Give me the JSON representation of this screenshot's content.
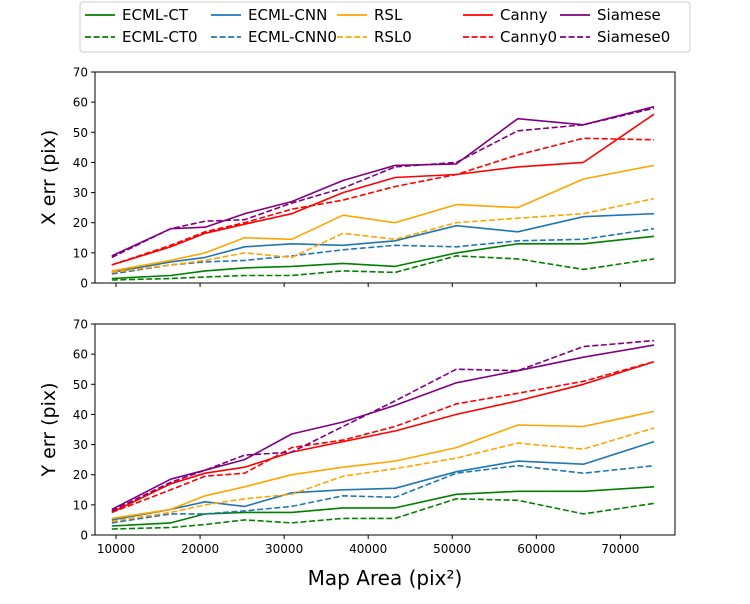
{
  "chart_data": [
    {
      "type": "line",
      "title": "",
      "xlabel": "",
      "ylabel": "X err (pix)",
      "xlim": [
        7500,
        76500
      ],
      "ylim": [
        0,
        70
      ],
      "xticks": [
        10000,
        20000,
        30000,
        40000,
        50000,
        60000,
        70000
      ],
      "xtick_labels": [
        "",
        "",
        "",
        "",
        "",
        "",
        ""
      ],
      "yticks": [
        0,
        10,
        20,
        30,
        40,
        50,
        60,
        70
      ],
      "ytick_labels": [
        "0",
        "10",
        "20",
        "30",
        "40",
        "50",
        "60",
        "70"
      ],
      "grid": false,
      "x": [
        9500,
        16500,
        20600,
        25300,
        30900,
        37000,
        43200,
        50500,
        57800,
        65600,
        74000
      ],
      "series": [
        {
          "name": "ECML-CT",
          "color": "#008000",
          "dash": false,
          "values": [
            1.5,
            2.5,
            4,
            5,
            5.5,
            6.5,
            5.5,
            10,
            13,
            13,
            15.5
          ]
        },
        {
          "name": "ECML-CT0",
          "color": "#008000",
          "dash": true,
          "values": [
            1,
            1.5,
            2,
            2.5,
            2.5,
            4,
            3.5,
            9,
            8,
            4.5,
            8
          ]
        },
        {
          "name": "ECML-CNN",
          "color": "#1f77b4",
          "dash": false,
          "values": [
            3.5,
            7,
            8.5,
            12,
            13,
            12.5,
            14,
            19,
            17,
            22,
            23
          ]
        },
        {
          "name": "ECML-CNN0",
          "color": "#1f77b4",
          "dash": true,
          "values": [
            3,
            6,
            7,
            7.5,
            9,
            11,
            12.5,
            12,
            14,
            14.5,
            18
          ]
        },
        {
          "name": "RSL",
          "color": "#ffa500",
          "dash": false,
          "values": [
            4,
            7.5,
            10,
            15,
            14.5,
            22.5,
            20,
            26,
            25,
            34.5,
            39
          ]
        },
        {
          "name": "RSL0",
          "color": "#ffa500",
          "dash": true,
          "values": [
            3.5,
            6,
            7.5,
            10,
            8.5,
            16.5,
            14.5,
            20,
            21.5,
            23,
            28
          ]
        },
        {
          "name": "Canny",
          "color": "#ff0000",
          "dash": false,
          "values": [
            6,
            12,
            16.5,
            19.5,
            23,
            30,
            35,
            36,
            38.5,
            40,
            56
          ]
        },
        {
          "name": "Canny0",
          "color": "#ff0000",
          "dash": true,
          "values": [
            6,
            12.5,
            17,
            20,
            24.5,
            27.5,
            32,
            36,
            42.5,
            48,
            47.5
          ]
        },
        {
          "name": "Siamese",
          "color": "#800080",
          "dash": false,
          "values": [
            9,
            18,
            18.5,
            23,
            27,
            34,
            39,
            39.5,
            54.5,
            52.5,
            58.5
          ]
        },
        {
          "name": "Siamese0",
          "color": "#800080",
          "dash": true,
          "values": [
            8.5,
            18,
            20.5,
            21,
            26.5,
            31.5,
            38.5,
            40,
            50.5,
            52.5,
            58
          ]
        }
      ]
    },
    {
      "type": "line",
      "title": "",
      "xlabel": "Map Area (pix²)",
      "ylabel": "Y err (pix)",
      "xlim": [
        7500,
        76500
      ],
      "ylim": [
        0,
        70
      ],
      "xticks": [
        10000,
        20000,
        30000,
        40000,
        50000,
        60000,
        70000
      ],
      "xtick_labels": [
        "10000",
        "20000",
        "30000",
        "40000",
        "50000",
        "60000",
        "70000"
      ],
      "yticks": [
        0,
        10,
        20,
        30,
        40,
        50,
        60,
        70
      ],
      "ytick_labels": [
        "0",
        "10",
        "20",
        "30",
        "40",
        "50",
        "60",
        "70"
      ],
      "grid": false,
      "x": [
        9500,
        16500,
        20600,
        25300,
        30900,
        37000,
        43200,
        50500,
        57800,
        65600,
        74000
      ],
      "series": [
        {
          "name": "ECML-CT",
          "color": "#008000",
          "dash": false,
          "values": [
            3,
            4,
            7,
            7.5,
            7.5,
            9,
            9,
            13.5,
            14.5,
            14.5,
            16
          ]
        },
        {
          "name": "ECML-CT0",
          "color": "#008000",
          "dash": true,
          "values": [
            2,
            2.5,
            3.5,
            5,
            4,
            5.5,
            5.5,
            12,
            11.5,
            7,
            10.5
          ]
        },
        {
          "name": "ECML-CNN",
          "color": "#1f77b4",
          "dash": false,
          "values": [
            5,
            8.5,
            11,
            9.5,
            14,
            15,
            15.5,
            21,
            24.5,
            23.5,
            31
          ]
        },
        {
          "name": "ECML-CNN0",
          "color": "#1f77b4",
          "dash": true,
          "values": [
            4,
            7,
            7,
            8,
            9.5,
            13,
            12.5,
            20.5,
            23,
            20.5,
            23
          ]
        },
        {
          "name": "RSL",
          "color": "#ffa500",
          "dash": false,
          "values": [
            5.5,
            8.5,
            13,
            16,
            20,
            22.5,
            24.5,
            29,
            36.5,
            36,
            41
          ]
        },
        {
          "name": "RSL0",
          "color": "#ffa500",
          "dash": true,
          "values": [
            4.5,
            7.5,
            10,
            12,
            13.5,
            19.5,
            22,
            25.5,
            30.5,
            28.5,
            35.5
          ]
        },
        {
          "name": "Canny",
          "color": "#ff0000",
          "dash": false,
          "values": [
            7.5,
            17,
            20.5,
            22.5,
            27.5,
            31,
            34.5,
            40,
            44.5,
            50,
            57.5
          ]
        },
        {
          "name": "Canny0",
          "color": "#ff0000",
          "dash": true,
          "values": [
            7.5,
            15,
            19.5,
            20.5,
            29,
            31.5,
            36,
            43.5,
            47,
            51,
            57.5
          ]
        },
        {
          "name": "Siamese",
          "color": "#800080",
          "dash": false,
          "values": [
            8.5,
            18.5,
            21.5,
            25,
            33.5,
            37.5,
            43,
            50.5,
            54.5,
            59,
            63
          ]
        },
        {
          "name": "Siamese0",
          "color": "#800080",
          "dash": true,
          "values": [
            8,
            17.5,
            21.5,
            26.5,
            27.5,
            36,
            44.5,
            55,
            54.5,
            62.5,
            64.5
          ]
        }
      ]
    }
  ],
  "legend": {
    "placement": "top-center",
    "columns": 5,
    "entries": [
      {
        "label": "ECML-CT",
        "color": "#008000",
        "dash": false
      },
      {
        "label": "ECML-CT0",
        "color": "#008000",
        "dash": true
      },
      {
        "label": "ECML-CNN",
        "color": "#1f77b4",
        "dash": false
      },
      {
        "label": "ECML-CNN0",
        "color": "#1f77b4",
        "dash": true
      },
      {
        "label": "RSL",
        "color": "#ffa500",
        "dash": false
      },
      {
        "label": "RSL0",
        "color": "#ffa500",
        "dash": true
      },
      {
        "label": "Canny",
        "color": "#ff0000",
        "dash": false
      },
      {
        "label": "Canny0",
        "color": "#ff0000",
        "dash": true
      },
      {
        "label": "Siamese",
        "color": "#800080",
        "dash": false
      },
      {
        "label": "Siamese0",
        "color": "#800080",
        "dash": true
      }
    ]
  }
}
